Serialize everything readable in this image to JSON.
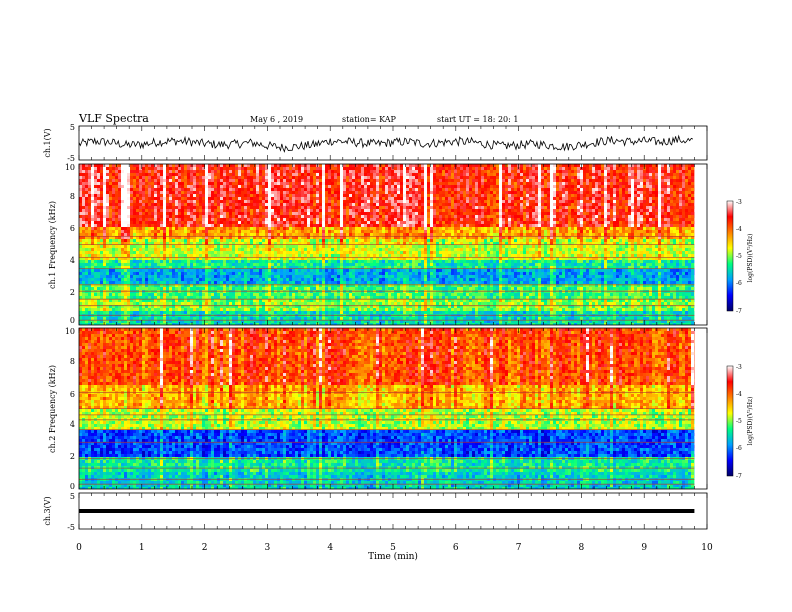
{
  "header": {
    "title": "VLF Spectra",
    "date": "May 6 , 2019",
    "station": "station= KAP",
    "start": "start UT = 18: 20: 1"
  },
  "chart_data": [
    {
      "type": "line",
      "panel": "ch1-waveform",
      "ylabel": "ch.1(V)",
      "ylim": [
        -5,
        5
      ],
      "yticks": [
        "5",
        "-5"
      ],
      "xlim": [
        0,
        10
      ],
      "series": [
        {
          "color": "#000000",
          "x": [
            0,
            0.25,
            0.5,
            0.75,
            1,
            1.25,
            1.5,
            1.75,
            2,
            2.25,
            2.5,
            2.75,
            3,
            3.25,
            3.5,
            3.75,
            4,
            4.25,
            4.5,
            4.75,
            5,
            5.25,
            5.5,
            5.75,
            6,
            6.25,
            6.5,
            6.75,
            7,
            7.25,
            7.5,
            7.75,
            8,
            8.25,
            8.5,
            8.75,
            9,
            9.25,
            9.5,
            9.8
          ],
          "values": [
            -0.3,
            0.5,
            0.2,
            -0.6,
            -0.4,
            0.3,
            0.6,
            0.4,
            -0.2,
            -0.5,
            -0.3,
            0.1,
            -0.8,
            -1.3,
            -1.0,
            -0.5,
            0.6,
            0.4,
            0.0,
            -0.3,
            0.2,
            0.4,
            -0.2,
            0.1,
            0.5,
            0.3,
            -0.4,
            -0.9,
            -0.6,
            -0.2,
            -0.7,
            -1.1,
            -0.5,
            0.3,
            0.8,
            0.4,
            0.6,
            0.3,
            0.9,
            0.7
          ]
        }
      ]
    },
    {
      "type": "heatmap",
      "panel": "ch1-spectrogram",
      "ylabel": "ch.1 Frequency (kHz)",
      "ylim": [
        0,
        10
      ],
      "yticks": [
        "0",
        "2",
        "4",
        "6",
        "8",
        "10"
      ],
      "xlim": [
        0,
        10
      ],
      "colorbar": {
        "label": "log(PSD)(V²/Hz)",
        "range": [
          -7,
          -3
        ],
        "ticks": [
          "-3",
          "-4",
          "-5",
          "-6",
          "-7"
        ]
      },
      "colormap": [
        "#000066",
        "#0000ff",
        "#00a0ff",
        "#00ff80",
        "#ffff00",
        "#ff8000",
        "#ff0000",
        "#ffffff"
      ],
      "bands": [
        {
          "from": 6.0,
          "to": 10.0,
          "level": -3.6
        },
        {
          "from": 5.4,
          "to": 6.0,
          "level": -4.3
        },
        {
          "from": 4.0,
          "to": 5.4,
          "level": -4.8
        },
        {
          "from": 3.4,
          "to": 4.0,
          "level": -5.4
        },
        {
          "from": 2.6,
          "to": 3.4,
          "level": -5.8
        },
        {
          "from": 1.6,
          "to": 2.6,
          "level": -5.2
        },
        {
          "from": 0.9,
          "to": 1.6,
          "level": -5.0
        },
        {
          "from": 0.0,
          "to": 0.9,
          "level": -5.5
        }
      ],
      "lines_khz": [
        5.5,
        5.0,
        4.2,
        3.5,
        2.5,
        2.1,
        1.6,
        1.2,
        0.6,
        0.3
      ]
    },
    {
      "type": "heatmap",
      "panel": "ch2-spectrogram",
      "ylabel": "ch.2 Frequency (kHz)",
      "ylim": [
        0,
        10
      ],
      "yticks": [
        "0",
        "2",
        "4",
        "6",
        "8",
        "10"
      ],
      "xlim": [
        0,
        10
      ],
      "colorbar": {
        "label": "log(PSD)(V²/Hz)",
        "range": [
          -7,
          -3
        ],
        "ticks": [
          "-3",
          "-4",
          "-5",
          "-6",
          "-7"
        ]
      },
      "colormap": [
        "#000066",
        "#0000ff",
        "#00a0ff",
        "#00ff80",
        "#ffff00",
        "#ff8000",
        "#ff0000",
        "#ffffff"
      ],
      "bands": [
        {
          "from": 6.5,
          "to": 10.0,
          "level": -3.9
        },
        {
          "from": 5.0,
          "to": 6.5,
          "level": -4.4
        },
        {
          "from": 3.6,
          "to": 5.0,
          "level": -4.9
        },
        {
          "from": 2.0,
          "to": 3.6,
          "level": -6.2
        },
        {
          "from": 1.0,
          "to": 2.0,
          "level": -5.4
        },
        {
          "from": 0.0,
          "to": 1.0,
          "level": -5.6
        }
      ],
      "lines_khz": [
        6.0,
        5.0,
        4.6,
        4.3,
        3.7,
        2.9,
        1.9,
        1.3,
        0.6,
        0.3
      ]
    },
    {
      "type": "line",
      "panel": "ch3-waveform",
      "ylabel": "ch.3(V)",
      "ylim": [
        -5,
        5
      ],
      "yticks": [
        "5",
        "-5"
      ],
      "xlim": [
        0,
        10
      ],
      "series": [
        {
          "color": "#000000",
          "x": [
            0,
            9.8
          ],
          "values": [
            0,
            0
          ]
        }
      ]
    }
  ],
  "x_axis": {
    "label": "Time (min)",
    "range": [
      0,
      10
    ],
    "ticks": [
      "0",
      "1",
      "2",
      "3",
      "4",
      "5",
      "6",
      "7",
      "8",
      "9",
      "10"
    ]
  }
}
